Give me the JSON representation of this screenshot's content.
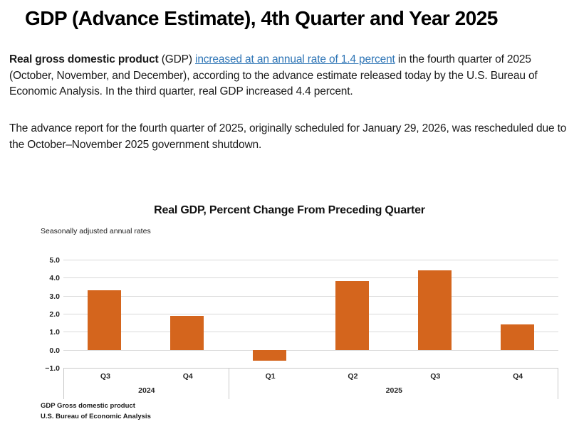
{
  "page": {
    "title": "GDP (Advance Estimate), 4th Quarter and Year 2025",
    "para1": {
      "bold": "Real gross domestic product",
      "after_bold": " (GDP) ",
      "link": "increased at an annual rate of 1.4 percent",
      "rest": " in the fourth quarter of 2025 (October, November, and December), according to the advance estimate released today by the U.S. Bureau of Economic Analysis. In the third quarter, real GDP increased 4.4 percent."
    },
    "para2": "The advance report for the fourth quarter of 2025, originally scheduled for January 29, 2026, was rescheduled due to the October–November 2025 government shutdown."
  },
  "colors": {
    "bar": "#d4651d",
    "link": "#2E75B6",
    "gridline": "#d9d9d9",
    "axis_border": "#c9c9c9"
  },
  "chart_data": {
    "type": "bar",
    "title": "Real GDP, Percent Change From Preceding Quarter",
    "subtitle": "Seasonally adjusted annual rates",
    "categories": [
      "Q3",
      "Q4",
      "Q1",
      "Q2",
      "Q3",
      "Q4"
    ],
    "groups": [
      {
        "label": "2024",
        "span": 2
      },
      {
        "label": "2025",
        "span": 4
      }
    ],
    "values": [
      3.3,
      1.9,
      -0.6,
      3.8,
      4.4,
      1.4
    ],
    "ylim": [
      -1.0,
      5.0
    ],
    "ytick_step": 1.0,
    "yticks": [
      "5.0",
      "4.0",
      "3.0",
      "2.0",
      "1.0",
      "0.0",
      "−1.0"
    ],
    "grid": true,
    "legend": null,
    "footnotes": [
      "GDP Gross domestic product",
      "U.S. Bureau of Economic Analysis"
    ]
  }
}
